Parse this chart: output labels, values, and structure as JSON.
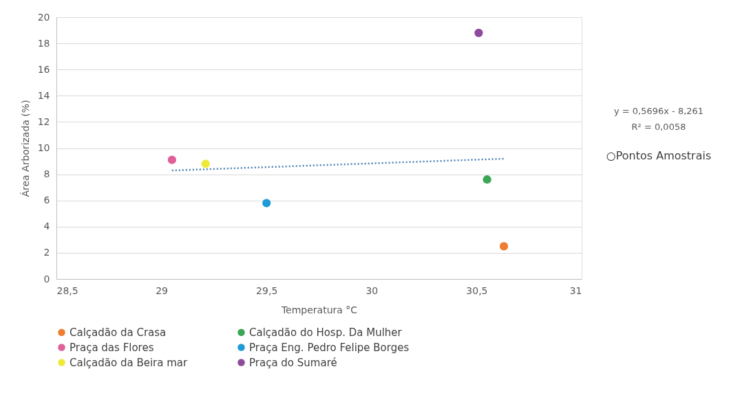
{
  "chart_data": {
    "type": "scatter",
    "xlabel": "Temperatura °C",
    "ylabel": "Área Arborizada (%)",
    "xlim": [
      28.5,
      31
    ],
    "xticks": [
      {
        "value": 28.5,
        "label": "28,5"
      },
      29,
      {
        "value": 29.5,
        "label": "29,5"
      },
      30,
      {
        "value": 30.5,
        "label": "30,5"
      },
      31
    ],
    "ylim": [
      0,
      20
    ],
    "yticks": [
      0,
      2,
      4,
      6,
      8,
      10,
      12,
      14,
      16,
      18,
      20
    ],
    "grid": "y",
    "legend": "bottom",
    "marker": "circle",
    "annotations": [
      "y = 0,5696x - 8,261",
      "R² = 0,0058",
      "○Pontos Amostrais"
    ],
    "series": [
      {
        "name": "Calçadão da Crasa",
        "color": "#ed7d31",
        "x": [
          30.63
        ],
        "values": [
          2.5
        ]
      },
      {
        "name": "Calçadão do Hosp. Da Mulher",
        "color": "#3ca655",
        "x": [
          30.55
        ],
        "values": [
          7.6
        ]
      },
      {
        "name": "Praça das Flores",
        "color": "#e0609a",
        "x": [
          29.05
        ],
        "values": [
          9.1
        ]
      },
      {
        "name": "Praça Eng. Pedro Felipe Borges",
        "color": "#1f9bd6",
        "x": [
          29.5
        ],
        "values": [
          5.8
        ]
      },
      {
        "name": "Calçadão da Beira mar",
        "color": "#eeea3a",
        "x": [
          29.21
        ],
        "values": [
          8.8
        ]
      },
      {
        "name": "Praça do Sumaré",
        "color": "#8e4a9c",
        "x": [
          30.51
        ],
        "values": [
          18.8
        ]
      },
      {
        "type": "line",
        "color": "#4a7fb5",
        "line_style": "dotted",
        "marker": "none",
        "x": [
          29.05,
          30.63
        ],
        "values": [
          8.29,
          9.19
        ]
      }
    ]
  }
}
